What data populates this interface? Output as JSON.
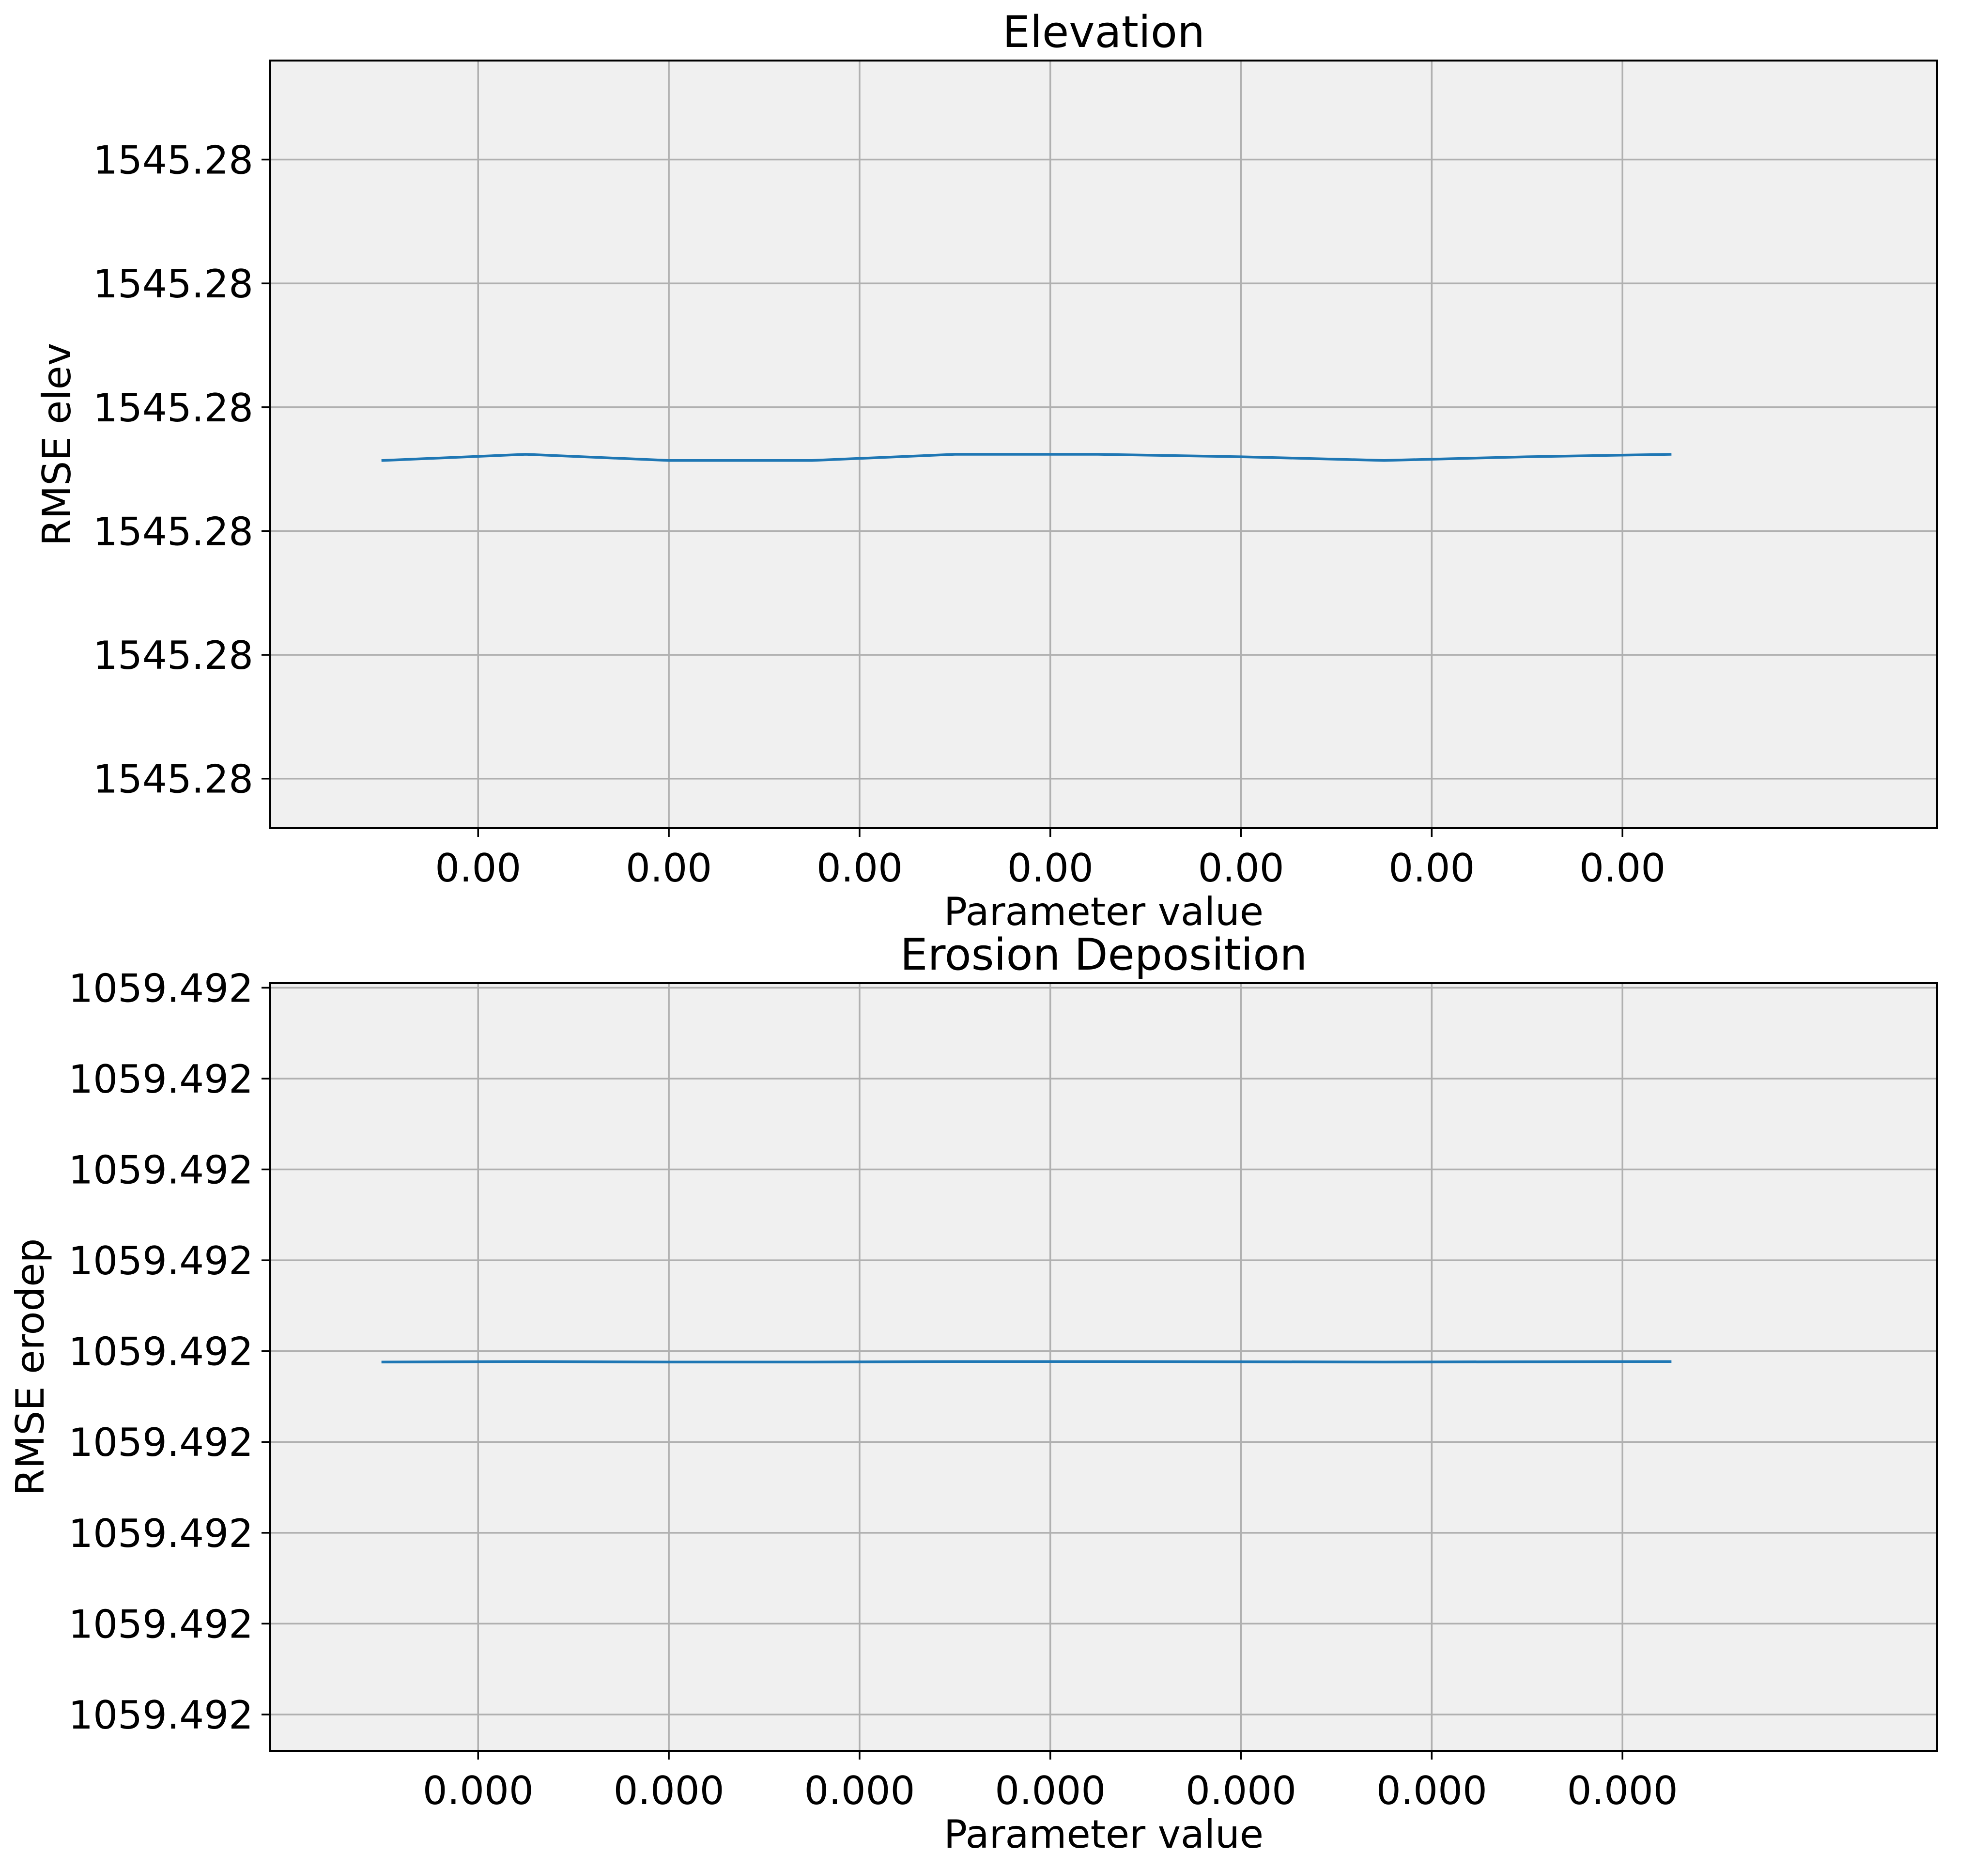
{
  "chart_data": [
    {
      "type": "line",
      "title": "Elevation",
      "xlabel": "Parameter value",
      "ylabel": "RMSE elev",
      "xlim": [
        -1.09,
        7.65
      ],
      "ylim": [
        -0.4,
        5.8
      ],
      "grid": true,
      "background": "#f0f0f0",
      "x_ticks": [
        0,
        1,
        2,
        3,
        4,
        5,
        6
      ],
      "x_tick_labels": [
        "0.00",
        "0.00",
        "0.00",
        "0.00",
        "0.00",
        "0.00",
        "0.00"
      ],
      "y_ticks": [
        0,
        1,
        2,
        3,
        4,
        5
      ],
      "y_tick_labels": [
        "1545.28",
        "1545.28",
        "1545.28",
        "1545.28",
        "1545.28",
        "1545.28"
      ],
      "series": [
        {
          "color": "#1f77b4",
          "x": [
            -0.5,
            0.25,
            1.0,
            1.75,
            2.5,
            3.25,
            4.0,
            4.75,
            5.5,
            6.25
          ],
          "y": [
            2.57,
            2.62,
            2.57,
            2.57,
            2.62,
            2.62,
            2.6,
            2.57,
            2.6,
            2.62
          ]
        }
      ]
    },
    {
      "type": "line",
      "title": "Erosion Deposition",
      "xlabel": "Parameter value",
      "ylabel": "RMSE erodep",
      "xlim": [
        -1.09,
        7.65
      ],
      "ylim": [
        -0.4,
        8.05
      ],
      "grid": true,
      "background": "#f0f0f0",
      "x_ticks": [
        0,
        1,
        2,
        3,
        4,
        5,
        6
      ],
      "x_tick_labels": [
        "0.000",
        "0.000",
        "0.000",
        "0.000",
        "0.000",
        "0.000",
        "0.000"
      ],
      "y_ticks": [
        0,
        1,
        2,
        3,
        4,
        5,
        6,
        7,
        8
      ],
      "y_tick_labels": [
        "1059.492",
        "1059.492",
        "1059.492",
        "1059.492",
        "1059.492",
        "1059.492",
        "1059.492",
        "1059.492",
        "1059.492"
      ],
      "series": [
        {
          "color": "#1f77b4",
          "x": [
            -0.5,
            0.25,
            1.0,
            1.75,
            2.5,
            3.25,
            4.0,
            4.75,
            5.5,
            6.25
          ],
          "y": [
            3.88,
            3.885,
            3.88,
            3.88,
            3.885,
            3.885,
            3.883,
            3.88,
            3.883,
            3.885
          ]
        }
      ]
    }
  ]
}
